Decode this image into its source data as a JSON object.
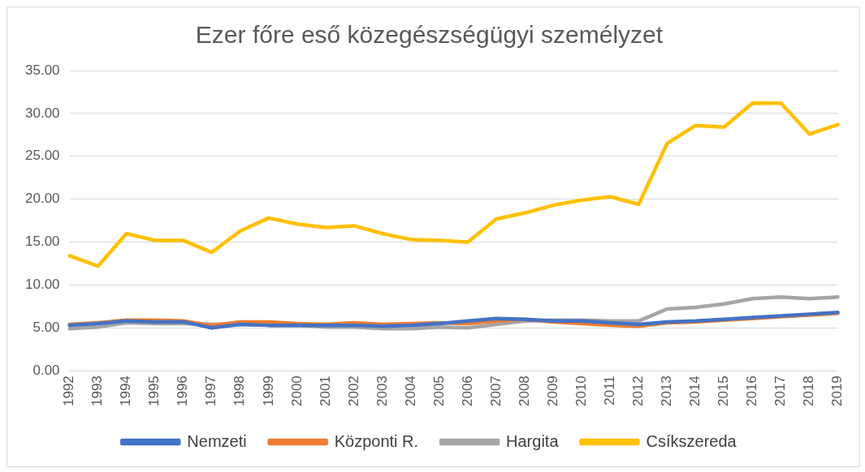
{
  "chart_data": {
    "type": "line",
    "title": "Ezer főre eső közegészségügyi személyzet",
    "categories": [
      "1992",
      "1993",
      "1994",
      "1995",
      "1996",
      "1997",
      "1998",
      "1999",
      "2000",
      "2001",
      "2002",
      "2003",
      "2004",
      "2005",
      "2006",
      "2007",
      "2008",
      "2009",
      "2010",
      "2011",
      "2012",
      "2013",
      "2014",
      "2015",
      "2016",
      "2017",
      "2018",
      "2019"
    ],
    "series": [
      {
        "name": "Nemzeti",
        "color": "#4472c4",
        "values": [
          5.3,
          5.5,
          5.8,
          5.7,
          5.7,
          5.0,
          5.4,
          5.3,
          5.3,
          5.3,
          5.3,
          5.2,
          5.3,
          5.5,
          5.8,
          6.1,
          6.0,
          5.8,
          5.8,
          5.6,
          5.4,
          5.7,
          5.8,
          6.0,
          6.2,
          6.4,
          6.6,
          6.8
        ]
      },
      {
        "name": "Központi R.",
        "color": "#ed7d31",
        "values": [
          5.4,
          5.6,
          5.9,
          5.9,
          5.8,
          5.3,
          5.7,
          5.7,
          5.5,
          5.4,
          5.6,
          5.4,
          5.5,
          5.6,
          5.5,
          5.8,
          6.0,
          5.7,
          5.5,
          5.3,
          5.2,
          5.6,
          5.7,
          5.9,
          6.1,
          6.3,
          6.5,
          6.7
        ]
      },
      {
        "name": "Hargita",
        "color": "#a5a5a5",
        "values": [
          4.9,
          5.1,
          5.6,
          5.5,
          5.5,
          5.4,
          5.4,
          5.3,
          5.3,
          5.1,
          5.1,
          4.9,
          4.9,
          5.1,
          5.0,
          5.4,
          5.8,
          5.9,
          5.9,
          5.8,
          5.8,
          7.2,
          7.4,
          7.8,
          8.4,
          8.6,
          8.4,
          8.6
        ]
      },
      {
        "name": "Csíkszereda",
        "color": "#ffc000",
        "values": [
          13.4,
          12.2,
          16.0,
          15.2,
          15.2,
          13.8,
          16.3,
          17.8,
          17.1,
          16.7,
          16.9,
          16.0,
          15.3,
          15.2,
          15.0,
          17.7,
          18.4,
          19.3,
          19.9,
          20.3,
          19.4,
          26.5,
          28.6,
          28.4,
          31.2,
          31.2,
          27.6,
          28.7
        ]
      }
    ],
    "ylim": [
      0,
      35
    ],
    "yticks": [
      {
        "value": 0,
        "label": "0.00"
      },
      {
        "value": 5,
        "label": "5.00"
      },
      {
        "value": 10,
        "label": "10.00"
      },
      {
        "value": 15,
        "label": "15.00"
      },
      {
        "value": 20,
        "label": "20.00"
      },
      {
        "value": 25,
        "label": "25.00"
      },
      {
        "value": 30,
        "label": "30.00"
      },
      {
        "value": 35,
        "label": "35.00"
      }
    ],
    "grid": "y",
    "legend": "bottom",
    "marker": "none",
    "line_style": "solid"
  }
}
